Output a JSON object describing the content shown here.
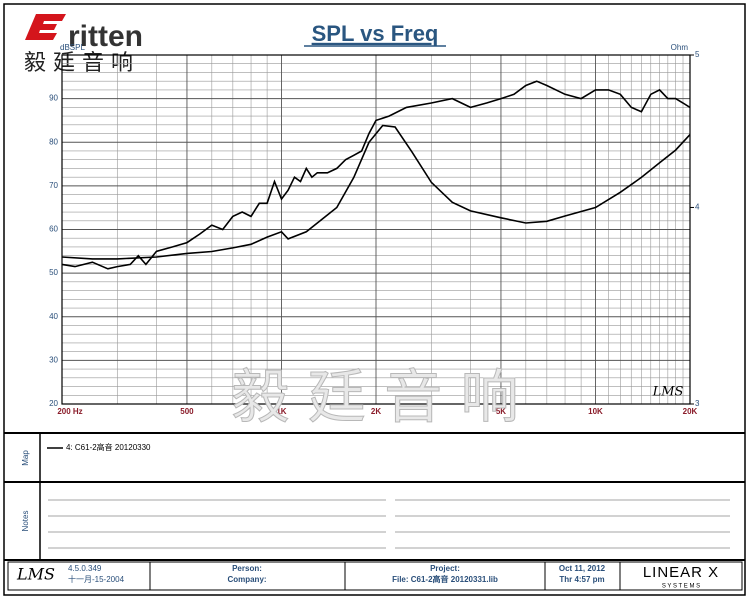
{
  "header": {
    "logo": "ritten",
    "logo_cn": "毅 廷 音 响"
  },
  "watermark": "毅 廷 音 响",
  "chart_data": {
    "type": "line",
    "title": "SPL vs Freq",
    "y_label": "dBSPL",
    "y2_label": "Ohm",
    "annotation": "LMS",
    "xscale": "log",
    "y2scale": "log",
    "grid": true,
    "xlim": [
      200,
      20000
    ],
    "ylim": [
      20,
      100
    ],
    "y2lim": [
      3,
      5
    ],
    "xticks": [
      {
        "value": 200,
        "label": "200  Hz"
      },
      500,
      {
        "value": 1000,
        "label": "1K"
      },
      {
        "value": 2000,
        "label": "2K"
      },
      {
        "value": 5000,
        "label": "5K"
      },
      {
        "value": 10000,
        "label": "10K"
      },
      {
        "value": 20000,
        "label": "20K"
      }
    ],
    "yticks": [
      20,
      30,
      40,
      50,
      60,
      70,
      80,
      90
    ],
    "y2ticks": [
      3,
      4,
      5
    ],
    "xgrid": [
      300,
      400,
      600,
      700,
      800,
      900,
      3000,
      4000,
      6000,
      7000,
      8000,
      9000,
      11000,
      12000,
      13000,
      14000,
      15000,
      16000,
      17000,
      18000,
      19000
    ],
    "ygrid": [
      22,
      24,
      26,
      28,
      32,
      34,
      36,
      38,
      42,
      44,
      46,
      48,
      52,
      54,
      56,
      58,
      62,
      64,
      66,
      68,
      72,
      74,
      76,
      78,
      82,
      84,
      86,
      88,
      92,
      94,
      96,
      98,
      100
    ],
    "series": [
      {
        "name": "4: C61-2高音 20120330",
        "color": "#000000",
        "x": [
          200,
          220,
          250,
          280,
          300,
          330,
          350,
          370,
          400,
          450,
          500,
          550,
          600,
          650,
          700,
          750,
          800,
          850,
          900,
          950,
          1000,
          1050,
          1100,
          1150,
          1200,
          1250,
          1300,
          1400,
          1500,
          1600,
          1700,
          1800,
          1900,
          2000,
          2200,
          2500,
          3000,
          3500,
          4000,
          4500,
          5000,
          5500,
          6000,
          6500,
          7000,
          8000,
          9000,
          10000,
          11000,
          12000,
          13000,
          14000,
          15000,
          16000,
          17000,
          18000,
          19000,
          20000
        ],
        "values": [
          52,
          51.5,
          52.5,
          51,
          51.5,
          52,
          54,
          52,
          55,
          56,
          57,
          59,
          61,
          60,
          63,
          64,
          63,
          66,
          66,
          71,
          67,
          69,
          72,
          71,
          74,
          72,
          73,
          73,
          74,
          76,
          77,
          78,
          82,
          85,
          86,
          88,
          89,
          90,
          88,
          89,
          90,
          91,
          93,
          94,
          93,
          91,
          90,
          92,
          92,
          91,
          88,
          87,
          91,
          92,
          90,
          90,
          89,
          88
        ]
      },
      {
        "color": "#000000",
        "axis": "y2",
        "x": [
          200,
          250,
          300,
          400,
          500,
          600,
          700,
          800,
          900,
          1000,
          1050,
          1200,
          1500,
          1700,
          1900,
          2100,
          2300,
          2600,
          3000,
          3500,
          4000,
          5000,
          6000,
          7000,
          8000,
          10000,
          12000,
          14000,
          16000,
          18000,
          20000
        ],
        "values": [
          3.72,
          3.71,
          3.71,
          3.72,
          3.74,
          3.75,
          3.77,
          3.79,
          3.83,
          3.86,
          3.82,
          3.86,
          4.0,
          4.18,
          4.4,
          4.51,
          4.5,
          4.34,
          4.15,
          4.03,
          3.98,
          3.94,
          3.91,
          3.92,
          3.95,
          4.0,
          4.09,
          4.18,
          4.27,
          4.35,
          4.45
        ]
      }
    ]
  },
  "panels": {
    "map_label": "Map",
    "notes_label": "Notes"
  },
  "footer": {
    "logo": "LMS",
    "version": "4.5.0.349",
    "date_old": "十一月-15-2004",
    "person": "Person:",
    "company": "Company:",
    "project": "Project:",
    "file": "File: C61-2高音 20120331.lib",
    "date": "Oct 11, 2012",
    "time": "Thr  4:57 pm",
    "brand": "LINEAR X",
    "brand_sub": "S Y S T E M S"
  }
}
